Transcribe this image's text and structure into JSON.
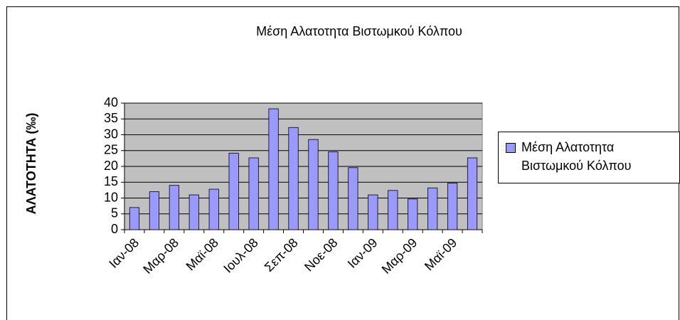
{
  "chart_data": {
    "type": "bar",
    "title": "Μέση Αλατοτητα Βιστωμκού Κόλπου",
    "y_label": "ΑΛΑΤΟΤΗΤΑ (‰)",
    "categories": [
      "Ιαν-08",
      null,
      "Μαρ-08",
      null,
      "Μαϊ-08",
      null,
      "Ιουλ-08",
      null,
      "Σεπ-08",
      null,
      "Νοε-08",
      null,
      "Ιαν-09",
      null,
      "Μαρ-09",
      null,
      "Μαϊ-09",
      null
    ],
    "series": [
      {
        "name": "Μέση Αλατοτητα Βιστωμκού Κόλπου",
        "color": "#9999ff",
        "values": [
          7,
          12,
          14,
          11,
          12.8,
          24.2,
          22.7,
          38.2,
          32.3,
          28.5,
          24.6,
          19.6,
          11,
          12.4,
          9.7,
          13.2,
          14.7,
          22.7
        ]
      }
    ],
    "ylim": [
      0,
      40
    ],
    "yticks": [
      0,
      5,
      10,
      15,
      20,
      25,
      30,
      35,
      40
    ],
    "grid": true,
    "legend": "right"
  }
}
